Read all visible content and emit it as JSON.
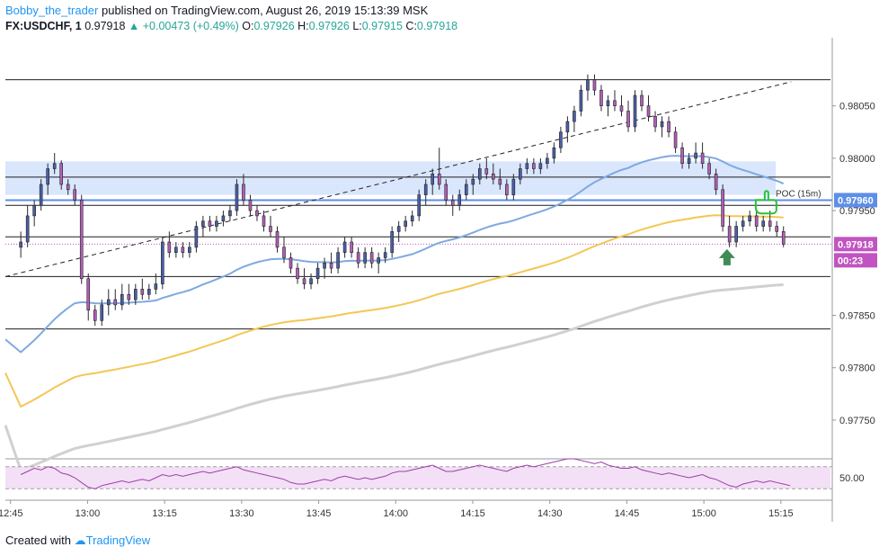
{
  "header": {
    "author": "Bobby_the_trader",
    "published": "published on TradingView.com, August 26, 2019 15:13:39 MSK",
    "symbol": "FX:USDCHF, 1",
    "last": "0.97918",
    "change": "+0.00473 (+0.49%)",
    "o_label": "O:",
    "o": "0.97926",
    "h_label": "H:",
    "h": "0.97926",
    "l_label": "L:",
    "l": "0.97915",
    "c_label": "C:",
    "c": "0.97918"
  },
  "footer": {
    "created_with": "Created with",
    "brand": "TradingView"
  },
  "colors": {
    "up": "#26a69a",
    "candle_up": "#4a5fa8",
    "candle_down": "#b15fb6",
    "ma_fast": "#7fa9e0",
    "ma_mid": "#f4c654",
    "ma_slow": "#d0d0d0",
    "zone": "#cfe0fb",
    "poc": "#5d8ee8",
    "rsi_band": "#f3e0f6",
    "rsi_line": "#9c3fa8",
    "arrow_up": "#3f8b55",
    "hand": "#25c43a",
    "price_tag": "#c154c1"
  },
  "chart_data": {
    "type": "candlestick",
    "title": "FX:USDCHF, 1",
    "x_tick_labels": [
      "12:45",
      "13:00",
      "13:15",
      "13:30",
      "13:45",
      "14:00",
      "14:15",
      "14:30",
      "14:45",
      "15:00",
      "15:15"
    ],
    "x_tick_minutes": [
      765,
      780,
      795,
      810,
      825,
      840,
      855,
      870,
      885,
      900,
      915
    ],
    "x_range_minutes": [
      764,
      925
    ],
    "y_tick_labels": [
      "0.98050",
      "0.98000",
      "0.97950",
      "0.97850",
      "0.97800",
      "0.97750"
    ],
    "y_ticks": [
      0.9805,
      0.98,
      0.9795,
      0.9785,
      0.978,
      0.9775
    ],
    "y_range": [
      0.97713,
      0.98115
    ],
    "horizontal_levels": [
      0.98075,
      0.97982,
      0.97955,
      0.97925,
      0.97887,
      0.97837
    ],
    "zone": {
      "top": 0.97997,
      "bottom": 0.97965,
      "from_minute": 764,
      "to_minute": 914
    },
    "poc": {
      "label": "POC (15m)",
      "value": 0.9796,
      "tag": "0.97960"
    },
    "current": {
      "value": 0.97918,
      "tag": "0.97918",
      "countdown": "00:23"
    },
    "trendline": {
      "from": [
        764,
        0.97887
      ],
      "to": [
        917,
        0.98073
      ]
    },
    "candles": [
      [
        0.97915,
        0.9793,
        0.97905,
        0.9792
      ],
      [
        0.9792,
        0.97955,
        0.97915,
        0.97945
      ],
      [
        0.97945,
        0.9796,
        0.97935,
        0.97955
      ],
      [
        0.97955,
        0.9798,
        0.9795,
        0.97975
      ],
      [
        0.97975,
        0.97995,
        0.97965,
        0.9799
      ],
      [
        0.9799,
        0.98005,
        0.97985,
        0.97995
      ],
      [
        0.97995,
        0.97998,
        0.9797,
        0.97975
      ],
      [
        0.97975,
        0.9798,
        0.97965,
        0.9797
      ],
      [
        0.9797,
        0.97975,
        0.97955,
        0.9796
      ],
      [
        0.9796,
        0.97965,
        0.9788,
        0.97885
      ],
      [
        0.97885,
        0.9789,
        0.97845,
        0.97855
      ],
      [
        0.97855,
        0.9786,
        0.9784,
        0.97845
      ],
      [
        0.97845,
        0.97865,
        0.9784,
        0.9786
      ],
      [
        0.9786,
        0.97875,
        0.9785,
        0.97865
      ],
      [
        0.97865,
        0.97875,
        0.97855,
        0.9786
      ],
      [
        0.9786,
        0.9788,
        0.97855,
        0.9787
      ],
      [
        0.9787,
        0.9788,
        0.9786,
        0.97865
      ],
      [
        0.97865,
        0.9788,
        0.9786,
        0.97875
      ],
      [
        0.97875,
        0.97885,
        0.97865,
        0.9787
      ],
      [
        0.9787,
        0.9788,
        0.97865,
        0.97875
      ],
      [
        0.97875,
        0.9789,
        0.9787,
        0.9788
      ],
      [
        0.9788,
        0.97925,
        0.97875,
        0.9792
      ],
      [
        0.9792,
        0.9793,
        0.97905,
        0.9791
      ],
      [
        0.9791,
        0.9792,
        0.97905,
        0.97915
      ],
      [
        0.97915,
        0.9792,
        0.97905,
        0.9791
      ],
      [
        0.9791,
        0.9792,
        0.97905,
        0.97915
      ],
      [
        0.97915,
        0.9794,
        0.9791,
        0.97935
      ],
      [
        0.97935,
        0.97945,
        0.97925,
        0.9794
      ],
      [
        0.9794,
        0.97945,
        0.9793,
        0.97935
      ],
      [
        0.97935,
        0.97945,
        0.9793,
        0.9794
      ],
      [
        0.9794,
        0.9795,
        0.97935,
        0.97945
      ],
      [
        0.97945,
        0.97955,
        0.9794,
        0.9795
      ],
      [
        0.9795,
        0.9798,
        0.97945,
        0.97975
      ],
      [
        0.97975,
        0.97985,
        0.97955,
        0.9796
      ],
      [
        0.9796,
        0.97965,
        0.97945,
        0.9795
      ],
      [
        0.9795,
        0.97955,
        0.9794,
        0.97945
      ],
      [
        0.97945,
        0.9795,
        0.9793,
        0.97935
      ],
      [
        0.97935,
        0.97945,
        0.97925,
        0.9793
      ],
      [
        0.9793,
        0.97935,
        0.9791,
        0.97915
      ],
      [
        0.97915,
        0.97925,
        0.979,
        0.97905
      ],
      [
        0.97905,
        0.9791,
        0.9789,
        0.97895
      ],
      [
        0.97895,
        0.979,
        0.9788,
        0.97885
      ],
      [
        0.97885,
        0.97895,
        0.97875,
        0.9788
      ],
      [
        0.9788,
        0.9789,
        0.97875,
        0.97885
      ],
      [
        0.97885,
        0.979,
        0.9788,
        0.97895
      ],
      [
        0.97895,
        0.97905,
        0.97885,
        0.979
      ],
      [
        0.979,
        0.9791,
        0.9789,
        0.97895
      ],
      [
        0.97895,
        0.97915,
        0.9789,
        0.9791
      ],
      [
        0.9791,
        0.97925,
        0.97905,
        0.9792
      ],
      [
        0.9792,
        0.97925,
        0.97905,
        0.9791
      ],
      [
        0.9791,
        0.97915,
        0.97895,
        0.979
      ],
      [
        0.979,
        0.97915,
        0.97895,
        0.9791
      ],
      [
        0.9791,
        0.97915,
        0.97895,
        0.979
      ],
      [
        0.979,
        0.9791,
        0.9789,
        0.97905
      ],
      [
        0.97905,
        0.97915,
        0.979,
        0.9791
      ],
      [
        0.9791,
        0.97935,
        0.97905,
        0.9793
      ],
      [
        0.9793,
        0.9794,
        0.9792,
        0.97935
      ],
      [
        0.97935,
        0.97945,
        0.9793,
        0.9794
      ],
      [
        0.9794,
        0.9795,
        0.97935,
        0.97945
      ],
      [
        0.97945,
        0.9797,
        0.9794,
        0.97965
      ],
      [
        0.97965,
        0.9798,
        0.97955,
        0.97975
      ],
      [
        0.97975,
        0.9799,
        0.97965,
        0.97985
      ],
      [
        0.97985,
        0.9801,
        0.9797,
        0.97975
      ],
      [
        0.97975,
        0.9798,
        0.97955,
        0.9796
      ],
      [
        0.9796,
        0.97965,
        0.97945,
        0.97955
      ],
      [
        0.97955,
        0.9797,
        0.9795,
        0.97965
      ],
      [
        0.97965,
        0.9798,
        0.9796,
        0.97975
      ],
      [
        0.97975,
        0.97985,
        0.97965,
        0.9798
      ],
      [
        0.9798,
        0.97995,
        0.97975,
        0.9799
      ],
      [
        0.9799,
        0.98,
        0.9798,
        0.97985
      ],
      [
        0.97985,
        0.97995,
        0.97975,
        0.9798
      ],
      [
        0.9798,
        0.9799,
        0.9797,
        0.97975
      ],
      [
        0.97975,
        0.9798,
        0.9796,
        0.97965
      ],
      [
        0.97965,
        0.97985,
        0.9796,
        0.9798
      ],
      [
        0.9798,
        0.97995,
        0.97975,
        0.9799
      ],
      [
        0.9799,
        0.98,
        0.97985,
        0.97995
      ],
      [
        0.97995,
        0.98,
        0.97985,
        0.9799
      ],
      [
        0.9799,
        0.98,
        0.97985,
        0.97995
      ],
      [
        0.97995,
        0.98005,
        0.9799,
        0.98
      ],
      [
        0.98,
        0.98015,
        0.97995,
        0.9801
      ],
      [
        0.9801,
        0.9803,
        0.98005,
        0.98025
      ],
      [
        0.98025,
        0.9804,
        0.98015,
        0.98035
      ],
      [
        0.98035,
        0.9805,
        0.98025,
        0.98045
      ],
      [
        0.98045,
        0.9807,
        0.9804,
        0.98065
      ],
      [
        0.98065,
        0.9808,
        0.98055,
        0.98075
      ],
      [
        0.98075,
        0.9808,
        0.9806,
        0.98065
      ],
      [
        0.98065,
        0.9807,
        0.98045,
        0.9805
      ],
      [
        0.9805,
        0.9806,
        0.9804,
        0.98055
      ],
      [
        0.98055,
        0.98065,
        0.98045,
        0.9805
      ],
      [
        0.9805,
        0.9806,
        0.9804,
        0.98045
      ],
      [
        0.98045,
        0.98055,
        0.98025,
        0.9803
      ],
      [
        0.9803,
        0.98065,
        0.98025,
        0.9806
      ],
      [
        0.9806,
        0.98065,
        0.98045,
        0.9805
      ],
      [
        0.9805,
        0.9806,
        0.98035,
        0.9804
      ],
      [
        0.9804,
        0.98045,
        0.98025,
        0.9803
      ],
      [
        0.9803,
        0.9804,
        0.9802,
        0.98035
      ],
      [
        0.98035,
        0.9804,
        0.9802,
        0.98025
      ],
      [
        0.98025,
        0.9803,
        0.98005,
        0.9801
      ],
      [
        0.9801,
        0.98015,
        0.9799,
        0.97995
      ],
      [
        0.97995,
        0.98005,
        0.9799,
        0.98
      ],
      [
        0.98,
        0.98015,
        0.97995,
        0.98005
      ],
      [
        0.98005,
        0.98015,
        0.9799,
        0.97995
      ],
      [
        0.97995,
        0.98,
        0.9798,
        0.97985
      ],
      [
        0.97985,
        0.9799,
        0.97965,
        0.9797
      ],
      [
        0.9797,
        0.97975,
        0.9793,
        0.97935
      ],
      [
        0.97935,
        0.97945,
        0.97915,
        0.9792
      ],
      [
        0.9792,
        0.9794,
        0.97915,
        0.97935
      ],
      [
        0.97935,
        0.97945,
        0.9793,
        0.9794
      ],
      [
        0.9794,
        0.9795,
        0.97935,
        0.97945
      ],
      [
        0.97945,
        0.9795,
        0.9793,
        0.97935
      ],
      [
        0.97935,
        0.97945,
        0.9793,
        0.9794
      ],
      [
        0.9794,
        0.9795,
        0.9793,
        0.97935
      ],
      [
        0.97935,
        0.9794,
        0.97925,
        0.9793
      ],
      [
        0.9793,
        0.97935,
        0.97915,
        0.97918
      ]
    ],
    "rsi": {
      "label": "50.00",
      "level": 50,
      "y_range": [
        38,
        62
      ],
      "band": [
        43,
        57
      ],
      "values": [
        52,
        54,
        56,
        55,
        57,
        56,
        53,
        52,
        50,
        47,
        44,
        43,
        45,
        46,
        47,
        48,
        47,
        48,
        49,
        48,
        50,
        52,
        51,
        52,
        51,
        52,
        53,
        54,
        53,
        54,
        55,
        56,
        57,
        55,
        54,
        53,
        52,
        51,
        50,
        49,
        47,
        46,
        46,
        47,
        48,
        49,
        48,
        50,
        51,
        50,
        49,
        50,
        49,
        50,
        51,
        53,
        54,
        54,
        55,
        56,
        57,
        58,
        56,
        54,
        54,
        55,
        56,
        57,
        58,
        57,
        56,
        55,
        54,
        56,
        57,
        58,
        57,
        58,
        59,
        60,
        61,
        62,
        62,
        61,
        60,
        59,
        60,
        58,
        57,
        56,
        56,
        57,
        55,
        54,
        53,
        52,
        53,
        52,
        51,
        50,
        51,
        52,
        50,
        49,
        47,
        45,
        44,
        46,
        47,
        48,
        47,
        48,
        47,
        46,
        45
      ]
    }
  }
}
